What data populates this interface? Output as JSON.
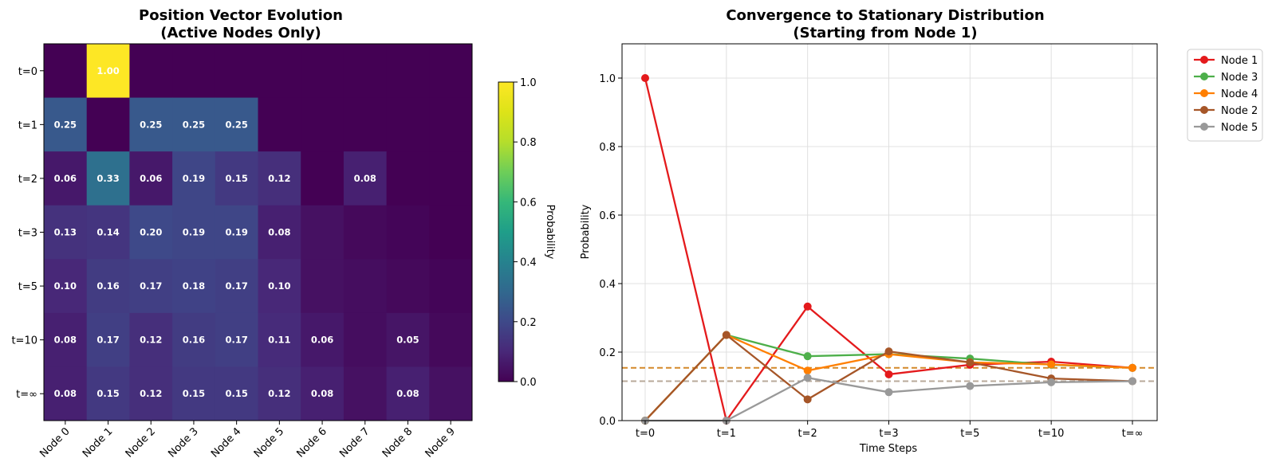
{
  "chart_data": [
    {
      "type": "heatmap",
      "title_lines": [
        "Position Vector Evolution",
        "(Active Nodes Only)"
      ],
      "x_categories": [
        "Node 0",
        "Node 1",
        "Node 2",
        "Node 3",
        "Node 4",
        "Node 5",
        "Node 6",
        "Node 7",
        "Node 8",
        "Node 9"
      ],
      "y_categories": [
        "t=0",
        "t=1",
        "t=2",
        "t=3",
        "t=5",
        "t=10",
        "t=∞"
      ],
      "values": [
        [
          0.0,
          1.0,
          0.0,
          0.0,
          0.0,
          0.0,
          0.0,
          0.0,
          0.0,
          0.0
        ],
        [
          0.25,
          0.0,
          0.25,
          0.25,
          0.25,
          0.0,
          0.0,
          0.0,
          0.0,
          0.0
        ],
        [
          0.06,
          0.33,
          0.06,
          0.19,
          0.15,
          0.12,
          0.0,
          0.08,
          0.0,
          0.0
        ],
        [
          0.13,
          0.14,
          0.2,
          0.19,
          0.19,
          0.08,
          0.04,
          0.02,
          0.01,
          0.0
        ],
        [
          0.1,
          0.16,
          0.17,
          0.18,
          0.17,
          0.1,
          0.04,
          0.03,
          0.02,
          0.01
        ],
        [
          0.08,
          0.17,
          0.12,
          0.16,
          0.17,
          0.11,
          0.06,
          0.03,
          0.05,
          0.02
        ],
        [
          0.08,
          0.15,
          0.12,
          0.15,
          0.15,
          0.12,
          0.08,
          0.04,
          0.08,
          0.04
        ]
      ],
      "shown_labels": [
        [
          null,
          "1.00",
          null,
          null,
          null,
          null,
          null,
          null,
          null,
          null
        ],
        [
          "0.25",
          null,
          "0.25",
          "0.25",
          "0.25",
          null,
          null,
          null,
          null,
          null
        ],
        [
          "0.06",
          "0.33",
          "0.06",
          "0.19",
          "0.15",
          "0.12",
          null,
          "0.08",
          null,
          null
        ],
        [
          "0.13",
          "0.14",
          "0.20",
          "0.19",
          "0.19",
          "0.08",
          null,
          null,
          null,
          null
        ],
        [
          "0.10",
          "0.16",
          "0.17",
          "0.18",
          "0.17",
          "0.10",
          null,
          null,
          null,
          null
        ],
        [
          "0.08",
          "0.17",
          "0.12",
          "0.16",
          "0.17",
          "0.11",
          "0.06",
          null,
          "0.05",
          null
        ],
        [
          "0.08",
          "0.15",
          "0.12",
          "0.15",
          "0.15",
          "0.12",
          "0.08",
          null,
          "0.08",
          null
        ]
      ],
      "colormap": "viridis",
      "colorbar": {
        "label": "Probability",
        "range": [
          0.0,
          1.0
        ],
        "ticks": [
          "0.0",
          "0.2",
          "0.4",
          "0.6",
          "0.8",
          "1.0"
        ]
      }
    },
    {
      "type": "line",
      "title_lines": [
        "Convergence to Stationary Distribution",
        "(Starting from Node 1)"
      ],
      "xlabel": "Time Steps",
      "ylabel": "Probability",
      "categories": [
        "t=0",
        "t=1",
        "t=2",
        "t=3",
        "t=5",
        "t=10",
        "t=∞"
      ],
      "ylim": [
        0.0,
        1.1
      ],
      "yticks": [
        "0.0",
        "0.2",
        "0.4",
        "0.6",
        "0.8",
        "1.0"
      ],
      "grid": true,
      "legend_position": "outside-top-right",
      "series": [
        {
          "name": "Node 1",
          "color": "#e41a1c",
          "values": [
            1.0,
            0.0,
            0.333,
            0.135,
            0.163,
            0.172,
            0.154
          ]
        },
        {
          "name": "Node 3",
          "color": "#4daf4a",
          "values": [
            0.0,
            0.25,
            0.188,
            0.194,
            0.181,
            0.163,
            0.154
          ]
        },
        {
          "name": "Node 4",
          "color": "#ff7f00",
          "values": [
            0.0,
            0.25,
            0.146,
            0.194,
            0.17,
            0.164,
            0.154
          ]
        },
        {
          "name": "Node 2",
          "color": "#a65628",
          "values": [
            0.0,
            0.25,
            0.062,
            0.202,
            0.17,
            0.123,
            0.115
          ]
        },
        {
          "name": "Node 5",
          "color": "#999999",
          "values": [
            0.0,
            0.0,
            0.125,
            0.083,
            0.101,
            0.112,
            0.115
          ]
        }
      ],
      "reference_lines": [
        {
          "value": 0.154,
          "color": "#d4892a"
        },
        {
          "value": 0.115,
          "color": "#b8a99a"
        }
      ]
    }
  ]
}
